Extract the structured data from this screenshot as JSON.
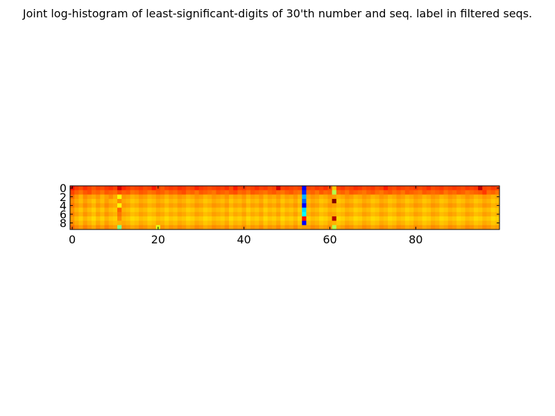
{
  "chart_data": {
    "type": "heatmap",
    "title": "Joint log-histogram of least-significant-digits of 30'th number and seq. label in filtered seqs.",
    "xlabel": "",
    "ylabel": "",
    "x_range": [
      0,
      99
    ],
    "y_range": [
      0,
      9
    ],
    "xticks": [
      0,
      20,
      40,
      60,
      80
    ],
    "yticks": [
      0,
      2,
      4,
      6,
      8
    ],
    "colormap": "jet",
    "value_range": [
      0,
      1
    ],
    "grid": false,
    "values": [
      [
        0.86,
        0.82,
        0.8,
        0.83,
        0.81,
        0.79,
        0.81,
        0.8,
        0.82,
        0.83,
        0.81,
        0.92,
        0.84,
        0.82,
        0.8,
        0.81,
        0.82,
        0.8,
        0.81,
        0.85,
        0.81,
        0.79,
        0.81,
        0.82,
        0.81,
        0.83,
        0.82,
        0.8,
        0.81,
        0.84,
        0.82,
        0.81,
        0.8,
        0.81,
        0.82,
        0.81,
        0.83,
        0.8,
        0.85,
        0.81,
        0.82,
        0.8,
        0.81,
        0.83,
        0.81,
        0.82,
        0.8,
        0.81,
        0.92,
        0.81,
        0.82,
        0.81,
        0.8,
        0.81,
        0.12,
        0.81,
        0.8,
        0.82,
        0.81,
        0.83,
        0.8,
        0.68,
        0.81,
        0.82,
        0.8,
        0.81,
        0.83,
        0.82,
        0.8,
        0.81,
        0.82,
        0.8,
        0.81,
        0.85,
        0.81,
        0.8,
        0.82,
        0.81,
        0.8,
        0.81,
        0.82,
        0.8,
        0.81,
        0.83,
        0.8,
        0.81,
        0.82,
        0.8,
        0.81,
        0.82,
        0.81,
        0.8,
        0.82,
        0.81,
        0.82,
        0.94,
        0.81,
        0.8,
        0.82,
        0.81
      ],
      [
        0.81,
        0.78,
        0.76,
        0.79,
        0.8,
        0.77,
        0.78,
        0.76,
        0.79,
        0.78,
        0.77,
        0.8,
        0.78,
        0.79,
        0.76,
        0.77,
        0.79,
        0.78,
        0.76,
        0.77,
        0.79,
        0.78,
        0.76,
        0.78,
        0.77,
        0.79,
        0.8,
        0.77,
        0.78,
        0.76,
        0.79,
        0.78,
        0.77,
        0.76,
        0.79,
        0.78,
        0.77,
        0.79,
        0.8,
        0.77,
        0.78,
        0.76,
        0.79,
        0.78,
        0.77,
        0.76,
        0.78,
        0.79,
        0.77,
        0.76,
        0.78,
        0.79,
        0.77,
        0.76,
        0.16,
        0.77,
        0.78,
        0.76,
        0.79,
        0.77,
        0.78,
        0.55,
        0.77,
        0.78,
        0.76,
        0.79,
        0.78,
        0.77,
        0.76,
        0.78,
        0.79,
        0.77,
        0.76,
        0.78,
        0.79,
        0.77,
        0.78,
        0.76,
        0.79,
        0.78,
        0.77,
        0.76,
        0.79,
        0.78,
        0.77,
        0.78,
        0.79,
        0.76,
        0.78,
        0.77,
        0.79,
        0.78,
        0.76,
        0.77,
        0.78,
        0.79,
        0.82,
        0.77,
        0.78,
        0.76
      ],
      [
        0.77,
        0.73,
        0.7,
        0.74,
        0.72,
        0.71,
        0.73,
        0.7,
        0.72,
        0.74,
        0.71,
        0.62,
        0.73,
        0.72,
        0.7,
        0.71,
        0.73,
        0.72,
        0.7,
        0.71,
        0.73,
        0.72,
        0.7,
        0.72,
        0.71,
        0.73,
        0.72,
        0.7,
        0.71,
        0.73,
        0.72,
        0.7,
        0.71,
        0.73,
        0.72,
        0.71,
        0.73,
        0.7,
        0.72,
        0.71,
        0.73,
        0.7,
        0.72,
        0.71,
        0.73,
        0.7,
        0.72,
        0.71,
        0.73,
        0.7,
        0.72,
        0.71,
        0.73,
        0.7,
        0.3,
        0.71,
        0.73,
        0.72,
        0.7,
        0.71,
        0.73,
        0.72,
        0.7,
        0.71,
        0.73,
        0.72,
        0.7,
        0.71,
        0.73,
        0.72,
        0.7,
        0.71,
        0.73,
        0.72,
        0.7,
        0.71,
        0.73,
        0.72,
        0.7,
        0.71,
        0.73,
        0.72,
        0.7,
        0.71,
        0.73,
        0.72,
        0.7,
        0.71,
        0.73,
        0.72,
        0.7,
        0.71,
        0.73,
        0.72,
        0.7,
        0.71,
        0.73,
        0.72,
        0.7,
        0.71
      ],
      [
        0.74,
        0.71,
        0.69,
        0.72,
        0.7,
        0.68,
        0.71,
        0.69,
        0.72,
        0.7,
        0.69,
        0.74,
        0.71,
        0.7,
        0.68,
        0.69,
        0.71,
        0.7,
        0.68,
        0.69,
        0.71,
        0.7,
        0.68,
        0.7,
        0.69,
        0.71,
        0.7,
        0.68,
        0.69,
        0.71,
        0.7,
        0.68,
        0.69,
        0.71,
        0.7,
        0.69,
        0.71,
        0.68,
        0.7,
        0.69,
        0.71,
        0.68,
        0.7,
        0.69,
        0.71,
        0.68,
        0.7,
        0.69,
        0.71,
        0.68,
        0.7,
        0.69,
        0.71,
        0.68,
        0.22,
        0.69,
        0.71,
        0.7,
        0.68,
        0.69,
        0.71,
        1.0,
        0.68,
        0.69,
        0.71,
        0.7,
        0.68,
        0.69,
        0.71,
        0.7,
        0.68,
        0.69,
        0.71,
        0.7,
        0.68,
        0.69,
        0.71,
        0.7,
        0.68,
        0.69,
        0.71,
        0.7,
        0.68,
        0.69,
        0.71,
        0.7,
        0.68,
        0.69,
        0.71,
        0.7,
        0.68,
        0.69,
        0.71,
        0.7,
        0.68,
        0.69,
        0.71,
        0.7,
        0.68,
        0.69
      ],
      [
        0.76,
        0.73,
        0.71,
        0.74,
        0.72,
        0.7,
        0.73,
        0.71,
        0.74,
        0.72,
        0.71,
        0.62,
        0.73,
        0.72,
        0.7,
        0.71,
        0.73,
        0.72,
        0.7,
        0.71,
        0.73,
        0.72,
        0.7,
        0.72,
        0.71,
        0.73,
        0.72,
        0.7,
        0.71,
        0.73,
        0.72,
        0.7,
        0.71,
        0.73,
        0.72,
        0.71,
        0.73,
        0.7,
        0.72,
        0.71,
        0.73,
        0.7,
        0.72,
        0.71,
        0.73,
        0.7,
        0.72,
        0.71,
        0.73,
        0.7,
        0.72,
        0.71,
        0.73,
        0.7,
        0.12,
        0.71,
        0.73,
        0.72,
        0.7,
        0.71,
        0.73,
        0.72,
        0.7,
        0.71,
        0.73,
        0.72,
        0.7,
        0.71,
        0.73,
        0.72,
        0.7,
        0.71,
        0.73,
        0.72,
        0.7,
        0.71,
        0.73,
        0.72,
        0.7,
        0.71,
        0.73,
        0.72,
        0.7,
        0.71,
        0.73,
        0.72,
        0.7,
        0.71,
        0.73,
        0.72,
        0.7,
        0.71,
        0.73,
        0.72,
        0.7,
        0.71,
        0.73,
        0.72,
        0.7,
        0.71
      ],
      [
        0.73,
        0.7,
        0.68,
        0.71,
        0.69,
        0.67,
        0.7,
        0.68,
        0.71,
        0.69,
        0.68,
        0.78,
        0.7,
        0.69,
        0.67,
        0.68,
        0.7,
        0.69,
        0.67,
        0.68,
        0.7,
        0.69,
        0.67,
        0.69,
        0.68,
        0.7,
        0.69,
        0.67,
        0.68,
        0.7,
        0.69,
        0.67,
        0.68,
        0.7,
        0.69,
        0.68,
        0.7,
        0.67,
        0.69,
        0.68,
        0.7,
        0.67,
        0.69,
        0.68,
        0.7,
        0.67,
        0.69,
        0.68,
        0.7,
        0.67,
        0.69,
        0.68,
        0.7,
        0.67,
        0.34,
        0.68,
        0.7,
        0.69,
        0.67,
        0.68,
        0.7,
        0.69,
        0.67,
        0.68,
        0.7,
        0.69,
        0.67,
        0.68,
        0.7,
        0.69,
        0.67,
        0.68,
        0.7,
        0.69,
        0.67,
        0.68,
        0.7,
        0.69,
        0.67,
        0.68,
        0.7,
        0.69,
        0.67,
        0.68,
        0.7,
        0.69,
        0.67,
        0.68,
        0.7,
        0.69,
        0.67,
        0.68,
        0.7,
        0.69,
        0.67,
        0.68,
        0.7,
        0.69,
        0.67,
        0.68
      ],
      [
        0.75,
        0.72,
        0.7,
        0.73,
        0.71,
        0.69,
        0.72,
        0.7,
        0.73,
        0.71,
        0.7,
        0.76,
        0.72,
        0.71,
        0.69,
        0.7,
        0.72,
        0.71,
        0.69,
        0.7,
        0.72,
        0.71,
        0.69,
        0.71,
        0.7,
        0.72,
        0.71,
        0.69,
        0.7,
        0.72,
        0.71,
        0.69,
        0.7,
        0.72,
        0.71,
        0.7,
        0.72,
        0.69,
        0.71,
        0.7,
        0.72,
        0.69,
        0.71,
        0.7,
        0.72,
        0.69,
        0.71,
        0.7,
        0.72,
        0.69,
        0.71,
        0.7,
        0.72,
        0.69,
        0.38,
        0.7,
        0.72,
        0.71,
        0.69,
        0.7,
        0.72,
        0.71,
        0.69,
        0.7,
        0.72,
        0.71,
        0.69,
        0.7,
        0.72,
        0.71,
        0.69,
        0.7,
        0.72,
        0.71,
        0.69,
        0.7,
        0.72,
        0.71,
        0.69,
        0.7,
        0.72,
        0.71,
        0.69,
        0.7,
        0.72,
        0.71,
        0.69,
        0.7,
        0.72,
        0.71,
        0.69,
        0.7,
        0.72,
        0.71,
        0.69,
        0.7,
        0.72,
        0.71,
        0.69,
        0.7
      ],
      [
        0.72,
        0.69,
        0.67,
        0.7,
        0.68,
        0.66,
        0.69,
        0.67,
        0.7,
        0.68,
        0.67,
        0.74,
        0.69,
        0.68,
        0.66,
        0.67,
        0.69,
        0.68,
        0.66,
        0.67,
        0.69,
        0.68,
        0.66,
        0.68,
        0.67,
        0.69,
        0.68,
        0.66,
        0.67,
        0.69,
        0.68,
        0.66,
        0.67,
        0.69,
        0.68,
        0.67,
        0.69,
        0.66,
        0.68,
        0.67,
        0.69,
        0.66,
        0.68,
        0.67,
        0.69,
        0.66,
        0.68,
        0.67,
        0.69,
        0.66,
        0.68,
        0.67,
        0.69,
        0.66,
        0.86,
        0.67,
        0.69,
        0.68,
        0.66,
        0.67,
        0.69,
        0.95,
        0.66,
        0.67,
        0.69,
        0.68,
        0.66,
        0.67,
        0.69,
        0.68,
        0.66,
        0.67,
        0.69,
        0.68,
        0.66,
        0.67,
        0.69,
        0.68,
        0.66,
        0.67,
        0.69,
        0.68,
        0.66,
        0.67,
        0.69,
        0.68,
        0.66,
        0.67,
        0.69,
        0.68,
        0.66,
        0.67,
        0.69,
        0.68,
        0.66,
        0.67,
        0.69,
        0.68,
        0.66,
        0.67
      ],
      [
        0.74,
        0.71,
        0.69,
        0.72,
        0.7,
        0.68,
        0.71,
        0.69,
        0.72,
        0.7,
        0.69,
        0.7,
        0.71,
        0.7,
        0.68,
        0.69,
        0.71,
        0.7,
        0.68,
        0.69,
        0.71,
        0.7,
        0.68,
        0.7,
        0.69,
        0.71,
        0.7,
        0.68,
        0.69,
        0.71,
        0.7,
        0.68,
        0.69,
        0.71,
        0.7,
        0.69,
        0.71,
        0.68,
        0.7,
        0.69,
        0.71,
        0.68,
        0.7,
        0.69,
        0.71,
        0.68,
        0.7,
        0.69,
        0.71,
        0.68,
        0.7,
        0.69,
        0.71,
        0.68,
        0.12,
        0.69,
        0.71,
        0.7,
        0.68,
        0.69,
        0.71,
        0.7,
        0.68,
        0.69,
        0.71,
        0.7,
        0.68,
        0.69,
        0.71,
        0.7,
        0.68,
        0.69,
        0.71,
        0.7,
        0.68,
        0.69,
        0.71,
        0.7,
        0.68,
        0.69,
        0.71,
        0.7,
        0.68,
        0.69,
        0.71,
        0.7,
        0.68,
        0.69,
        0.71,
        0.7,
        0.68,
        0.69,
        0.71,
        0.7,
        0.68,
        0.69,
        0.71,
        0.7,
        0.68,
        0.69
      ],
      [
        0.77,
        0.74,
        0.72,
        0.75,
        0.73,
        0.71,
        0.74,
        0.72,
        0.75,
        0.73,
        0.72,
        0.5,
        0.74,
        0.73,
        0.71,
        0.72,
        0.74,
        0.73,
        0.71,
        0.72,
        0.6,
        0.73,
        0.71,
        0.73,
        0.72,
        0.74,
        0.73,
        0.71,
        0.72,
        0.74,
        0.73,
        0.71,
        0.72,
        0.74,
        0.73,
        0.72,
        0.74,
        0.71,
        0.73,
        0.72,
        0.74,
        0.71,
        0.73,
        0.72,
        0.74,
        0.71,
        0.73,
        0.72,
        0.74,
        0.71,
        0.73,
        0.72,
        0.74,
        0.71,
        0.72,
        0.72,
        0.74,
        0.73,
        0.71,
        0.72,
        0.74,
        0.55,
        0.71,
        0.72,
        0.74,
        0.73,
        0.71,
        0.72,
        0.74,
        0.73,
        0.71,
        0.72,
        0.74,
        0.73,
        0.71,
        0.72,
        0.74,
        0.73,
        0.71,
        0.72,
        0.74,
        0.73,
        0.71,
        0.72,
        0.74,
        0.73,
        0.71,
        0.72,
        0.74,
        0.73,
        0.71,
        0.72,
        0.74,
        0.73,
        0.71,
        0.72,
        0.74,
        0.73,
        0.71,
        0.72
      ]
    ]
  }
}
